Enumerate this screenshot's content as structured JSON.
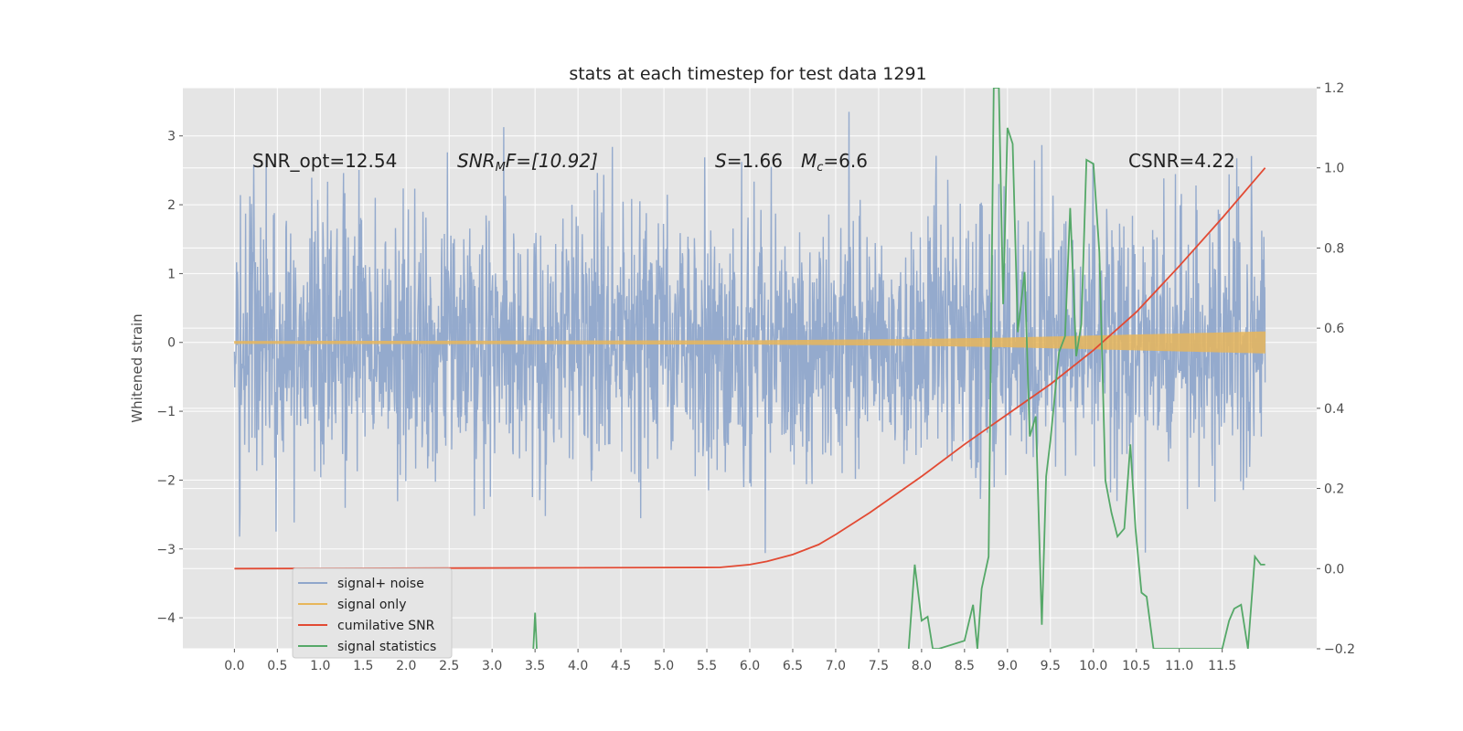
{
  "chart_data": {
    "type": "line",
    "title": "stats at each timestep for test data 1291",
    "ylabel": "Whitened strain",
    "xlim": [
      -0.6,
      12.6
    ],
    "ylim_left": [
      -4.45,
      3.7
    ],
    "ylim_right": [
      -0.2,
      1.2
    ],
    "x_ticks": [
      "0.0",
      "0.5",
      "1.0",
      "1.5",
      "2.0",
      "2.5",
      "3.0",
      "3.5",
      "4.0",
      "4.5",
      "5.0",
      "5.5",
      "6.0",
      "6.5",
      "7.0",
      "7.5",
      "8.0",
      "8.5",
      "9.0",
      "9.5",
      "10.0",
      "10.5",
      "11.0",
      "11.5"
    ],
    "y_ticks_left": [
      "3",
      "2",
      "1",
      "0",
      "−1",
      "−2",
      "−3",
      "−4"
    ],
    "y_ticks_right": [
      "1.2",
      "1.0",
      "0.8",
      "0.6",
      "0.4",
      "0.2",
      "0.0",
      "−0.2"
    ],
    "grid": true,
    "legend_position": "lower-left",
    "annotations": {
      "snr_opt": "SNR_opt=12.54",
      "snr_mf_main": "SNR",
      "snr_mf_sub": "M",
      "snr_mf_rest": "F=[10.92]",
      "s_var": "S",
      "s_val": "=1.66",
      "mc_var": "M",
      "mc_sub": "c",
      "mc_val": "=6.6",
      "csnr": "CSNR=4.22"
    },
    "series": [
      {
        "name": "signal+ noise",
        "color": "#8fa6cb",
        "axis": "left",
        "description_x": [
          0,
          12
        ],
        "band_y": [
          -1.6,
          1.6
        ],
        "spike_extremes_y": [
          -3.4,
          3.35
        ]
      },
      {
        "name": "signal only",
        "color": "#e7b65a",
        "axis": "left",
        "envelope": [
          [
            0,
            0.02
          ],
          [
            6.0,
            0.03
          ],
          [
            8.0,
            0.05
          ],
          [
            9.0,
            0.07
          ],
          [
            10.0,
            0.1
          ],
          [
            11.0,
            0.13
          ],
          [
            12.0,
            0.16
          ]
        ]
      },
      {
        "name": "cumilative SNR",
        "color": "#e24a33",
        "axis": "right",
        "x": [
          0,
          5.65,
          6.0,
          6.2,
          6.5,
          6.8,
          7.0,
          7.4,
          8.0,
          8.5,
          9.0,
          9.5,
          10.0,
          10.5,
          11.0,
          11.5,
          12.0
        ],
        "y": [
          0.0,
          0.003,
          0.01,
          0.018,
          0.035,
          0.06,
          0.085,
          0.14,
          0.23,
          0.31,
          0.385,
          0.46,
          0.545,
          0.64,
          0.755,
          0.875,
          1.0
        ]
      },
      {
        "name": "signal statistics",
        "color": "#55a868",
        "axis": "right",
        "x": [
          3.48,
          3.5,
          3.52,
          7.85,
          7.92,
          8.0,
          8.07,
          8.13,
          8.2,
          8.5,
          8.6,
          8.65,
          8.7,
          8.78,
          8.84,
          8.9,
          8.95,
          9.0,
          9.06,
          9.12,
          9.2,
          9.26,
          9.33,
          9.4,
          9.45,
          9.5,
          9.6,
          9.67,
          9.73,
          9.8,
          9.86,
          9.92,
          10.0,
          10.07,
          10.14,
          10.21,
          10.28,
          10.36,
          10.43,
          10.49,
          10.56,
          10.62,
          10.7,
          10.78,
          11.5,
          11.58,
          11.64,
          11.72,
          11.8,
          11.88,
          11.95,
          12.0
        ],
        "y": [
          -0.2,
          -0.11,
          -0.2,
          -0.2,
          0.01,
          -0.13,
          -0.12,
          -0.2,
          -0.2,
          -0.18,
          -0.09,
          -0.2,
          -0.05,
          0.03,
          1.2,
          1.2,
          0.66,
          1.1,
          1.06,
          0.59,
          0.74,
          0.33,
          0.38,
          -0.14,
          0.23,
          0.32,
          0.54,
          0.58,
          0.9,
          0.53,
          0.61,
          1.02,
          1.01,
          0.79,
          0.22,
          0.14,
          0.08,
          0.1,
          0.31,
          0.1,
          -0.06,
          -0.07,
          -0.2,
          -0.2,
          -0.2,
          -0.13,
          -0.1,
          -0.09,
          -0.2,
          0.03,
          0.01,
          0.01
        ]
      }
    ]
  }
}
